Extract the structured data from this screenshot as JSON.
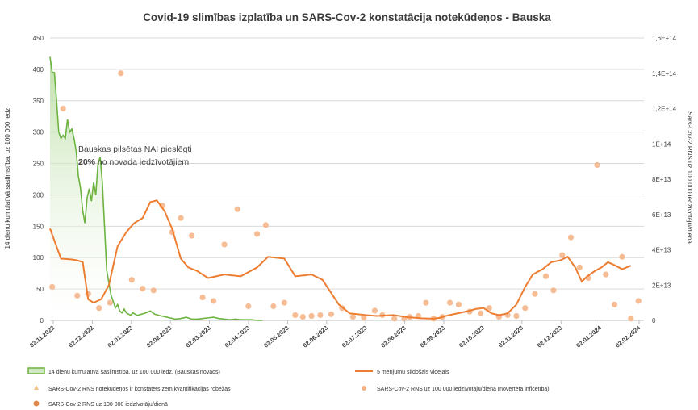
{
  "chart_data": {
    "type": "line",
    "title": "Covid-19 slimības izplatība un SARS-Cov-2 konstatācija notekūdeņos - Bauska",
    "ylabel_left": "14 dienu kumulatīvā saslimstība, uz 100 000 iedz.",
    "ylabel_right": "Sars-Cov-2 RNS uz 100 000 iedzīvotāju/dienā",
    "yticks_left": [
      "0",
      "50",
      "100",
      "150",
      "200",
      "250",
      "300",
      "350",
      "400",
      "450"
    ],
    "yticks_right": [
      "0",
      "2E+13",
      "4E+13",
      "6E+13",
      "8E+13",
      "1E+14",
      "1,2E+14",
      "1,4E+14",
      "1,6E+14"
    ],
    "ylim_left": [
      0,
      450
    ],
    "ylim_right": [
      0,
      160000000000000.0
    ],
    "xticks": [
      "02.11.2022",
      "02.12.2022",
      "02.01.2023",
      "02.02.2023",
      "02.03.2023",
      "02.04.2023",
      "02.05.2023",
      "02.06.2023",
      "02.07.2023",
      "02.08.2023",
      "02.09.2023",
      "02.10.2023",
      "02.11.2023",
      "02.12.2023",
      "02.01.2024",
      "02.02.2024"
    ],
    "annotation_line1": "Bauskas pilsētas NAI pieslēgti",
    "annotation_bold": "20%",
    "annotation_rest": " no novada iedzīvotājiem",
    "legend": {
      "incidence": "14 dienu kumulatīvā saslimstība, uz 100 000 iedz. (Bauskas novads)",
      "moving_avg": "5 mērījumu slīdošais vidējais",
      "below_quant": "SARS-Cov-2 RNS notekūdeņos ir konstatēts zem kvantifikācijas robežas",
      "estimated": "SARS-Cov-2 RNS uz 100 000 iedzīvotāju/dienā (novērtēta inficētība)",
      "measured": "SARS-Cov-2 RNS uz 100 000 iedzīvotāju/dienā"
    },
    "colors": {
      "incidence": "#6cb33f",
      "incidence_fill": "#cfe8c0",
      "moving_avg": "#ed7d31",
      "points": "#f4b183",
      "points_dark": "#e08a4b",
      "grid": "#d9d9d9"
    },
    "series": [
      {
        "name": "14 dienu kumulatīvā saslimstība, uz 100 000 iedz. (Bauskas novads)",
        "axis": "left",
        "x": [
          0,
          2,
          4,
          6,
          8,
          10,
          12,
          14,
          16,
          18,
          20,
          22,
          24,
          26,
          28,
          30,
          32,
          34,
          36,
          38,
          40,
          42,
          44,
          46,
          48,
          50,
          52,
          54,
          56,
          58,
          60,
          62,
          64,
          66,
          68,
          70,
          72,
          74,
          76,
          78,
          80,
          84,
          88,
          92,
          96,
          100,
          105,
          110,
          115,
          120,
          125,
          130,
          135,
          140,
          145,
          150,
          155,
          160,
          165,
          170,
          175,
          180,
          185,
          190,
          195
        ],
        "y": [
          420,
          395,
          395,
          350,
          300,
          290,
          295,
          290,
          320,
          300,
          305,
          290,
          270,
          230,
          210,
          175,
          155,
          195,
          210,
          190,
          220,
          200,
          250,
          260,
          220,
          150,
          80,
          60,
          40,
          30,
          20,
          25,
          15,
          12,
          18,
          12,
          10,
          8,
          12,
          10,
          8,
          10,
          12,
          15,
          10,
          8,
          6,
          4,
          2,
          3,
          5,
          2,
          2,
          3,
          4,
          5,
          3,
          2,
          1,
          2,
          1,
          1,
          1,
          0,
          0
        ]
      },
      {
        "name": "5 mērījumu slīdošais vidējais",
        "axis": "right",
        "x": [
          0,
          10,
          20,
          25,
          30,
          35,
          40,
          47,
          54,
          62,
          70,
          77,
          85,
          92,
          98,
          105,
          112,
          120,
          127,
          135,
          145,
          160,
          175,
          190,
          200,
          215,
          225,
          240,
          250,
          265,
          275,
          290,
          300,
          315,
          328,
          335,
          340,
          352,
          358,
          363,
          370,
          378,
          385,
          391,
          398,
          405,
          412,
          420,
          428,
          436,
          443,
          452,
          460,
          468,
          475,
          482,
          488,
          493,
          500,
          506,
          512,
          519,
          525,
          533
        ],
        "y": [
          52000000000000.0,
          35000000000000.0,
          34500000000000.0,
          34000000000000.0,
          33000000000000.0,
          12000000000000.0,
          10000000000000.0,
          12000000000000.0,
          20000000000000.0,
          42000000000000.0,
          50000000000000.0,
          55000000000000.0,
          58000000000000.0,
          67000000000000.0,
          68000000000000.0,
          62000000000000.0,
          52000000000000.0,
          35000000000000.0,
          30000000000000.0,
          28000000000000.0,
          24000000000000.0,
          26000000000000.0,
          25000000000000.0,
          30000000000000.0,
          36000000000000.0,
          35000000000000.0,
          25000000000000.0,
          26000000000000.0,
          23000000000000.0,
          9000000000000.0,
          4000000000000.0,
          3000000000000.0,
          2500000000000.0,
          3000000000000.0,
          1800000000000.0,
          1500000000000.0,
          1200000000000.0,
          1000000000000.0,
          1500000000000.0,
          2500000000000.0,
          3500000000000.0,
          4500000000000.0,
          5500000000000.0,
          6500000000000.0,
          7000000000000.0,
          4000000000000.0,
          3000000000000.0,
          4000000000000.0,
          9000000000000.0,
          19000000000000.0,
          26000000000000.0,
          29000000000000.0,
          33000000000000.0,
          34000000000000.0,
          36000000000000.0,
          30000000000000.0,
          22000000000000.0,
          25000000000000.0,
          28000000000000.0,
          30000000000000.0,
          33000000000000.0,
          31000000000000.0,
          29000000000000.0,
          31000000000000.0
        ]
      },
      {
        "name": "SARS-Cov-2 RNS uz 100 000 iedzīvotāju/dienā (novērtēta inficētība)",
        "axis": "right",
        "x": [
          2,
          12,
          25,
          35,
          45,
          55,
          65,
          75,
          85,
          95,
          103,
          112,
          120,
          130,
          140,
          150,
          160,
          172,
          182,
          190,
          198,
          205,
          215,
          225,
          232,
          240,
          248,
          258,
          268,
          278,
          288,
          298,
          305,
          316,
          325,
          330,
          338,
          345,
          352,
          360,
          367,
          375,
          385,
          395,
          403,
          412,
          420,
          428,
          436,
          445,
          455,
          462,
          470,
          478,
          486,
          494,
          502,
          510,
          518,
          525,
          533,
          540
        ],
        "y": [
          19000000000000.0,
          120000000000000.0,
          14000000000000.0,
          15000000000000.0,
          7000000000000.0,
          10000000000000.0,
          140000000000000.0,
          23000000000000.0,
          18000000000000.0,
          17000000000000.0,
          65000000000000.0,
          50000000000000.0,
          58000000000000.0,
          48000000000000.0,
          13000000000000.0,
          11000000000000.0,
          43000000000000.0,
          63000000000000.0,
          8000000000000.0,
          49000000000000.0,
          54000000000000.0,
          8000000000000.0,
          10000000000000.0,
          3000000000000.0,
          2000000000000.0,
          2500000000000.0,
          3000000000000.0,
          3500000000000.0,
          7000000000000.0,
          2000000000000.0,
          1500000000000.0,
          5500000000000.0,
          3000000000000.0,
          1000000000000.0,
          1000000000000.0,
          2000000000000.0,
          2500000000000.0,
          10000000000000.0,
          1000000000000.0,
          2000000000000.0,
          10000000000000.0,
          9000000000000.0,
          5000000000000.0,
          4000000000000.0,
          7000000000000.0,
          2000000000000.0,
          3000000000000.0,
          2500000000000.0,
          7000000000000.0,
          15000000000000.0,
          25000000000000.0,
          17000000000000.0,
          37000000000000.0,
          47000000000000.0,
          30000000000000.0,
          24000000000000.0,
          88000000000000.0,
          26000000000000.0,
          9000000000000.0,
          36000000000000.0,
          1000000000000.0,
          11000000000000.0
        ]
      }
    ]
  }
}
